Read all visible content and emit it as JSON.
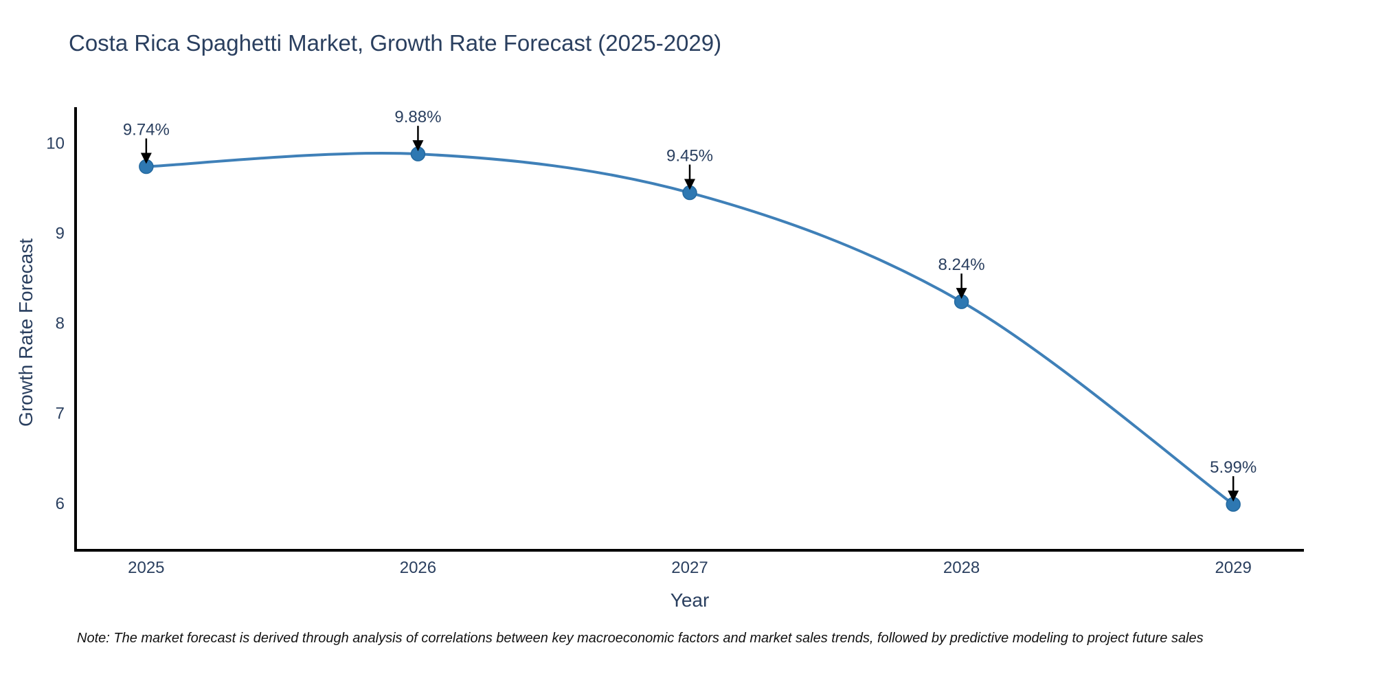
{
  "chart_data": {
    "type": "line",
    "title": "Costa Rica Spaghetti Market, Growth Rate Forecast (2025-2029)",
    "xlabel": "Year",
    "ylabel": "Growth Rate Forecast",
    "x": [
      2025,
      2026,
      2027,
      2028,
      2029
    ],
    "values": [
      9.74,
      9.88,
      9.45,
      8.24,
      5.99
    ],
    "point_labels": [
      "9.74%",
      "9.88%",
      "9.45%",
      "8.24%",
      "5.99%"
    ],
    "xticks": [
      "2025",
      "2026",
      "2027",
      "2028",
      "2029"
    ],
    "yticks": [
      6,
      7,
      8,
      9,
      10
    ],
    "xlim": [
      2024.74,
      2029.26
    ],
    "ylim": [
      5.48,
      10.4
    ],
    "grid": false,
    "legend": "none",
    "line_shape": "spline",
    "colors": {
      "line": "#3f80b8",
      "marker_fill": "#2e78b2",
      "marker_stroke": "#24699f",
      "spine": "#000000",
      "axis_text": "#2a3f5f",
      "annotation_text": "#2a3f5f",
      "annotation_arrow": "#000000",
      "background": "#ffffff"
    }
  },
  "note": "Note: The market forecast is derived through analysis of correlations between key macroeconomic factors and market sales trends, followed by predictive modeling to project future sales"
}
